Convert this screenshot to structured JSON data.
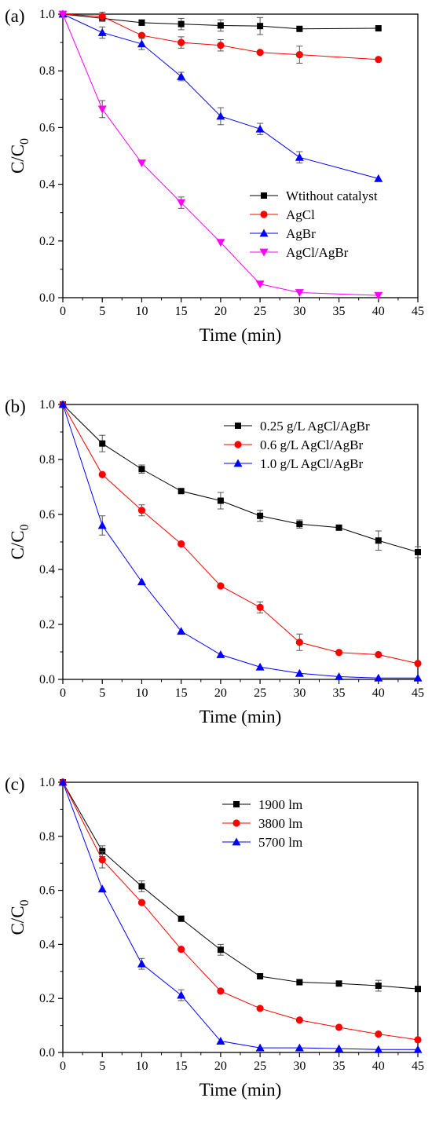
{
  "chart_data": [
    {
      "panel_label": "(a)",
      "type": "line",
      "xlabel": "Time (min)",
      "ylabel_main": "C/C",
      "ylabel_sub": "0",
      "xlim": [
        0,
        45
      ],
      "ylim": [
        0,
        1
      ],
      "xticks": [
        "0",
        "5",
        "10",
        "15",
        "20",
        "25",
        "30",
        "35",
        "40",
        "45"
      ],
      "yticks": [
        "0.0",
        "0.2",
        "0.4",
        "0.6",
        "0.8",
        "1.0"
      ],
      "legend_position": "lower-right",
      "series": [
        {
          "name": "Wtithout catalyst",
          "color": "#000000",
          "marker": "square",
          "x": [
            0,
            5,
            10,
            15,
            20,
            25,
            30,
            40
          ],
          "y": [
            1.0,
            0.985,
            0.97,
            0.965,
            0.96,
            0.958,
            0.948,
            0.95
          ],
          "err": [
            0,
            0.01,
            0.01,
            0.02,
            0.02,
            0.03,
            0,
            0
          ]
        },
        {
          "name": "AgCl",
          "color": "#ff0000",
          "marker": "circle",
          "x": [
            0,
            5,
            10,
            15,
            20,
            25,
            30,
            40
          ],
          "y": [
            1.0,
            0.992,
            0.925,
            0.9,
            0.89,
            0.865,
            0.857,
            0.84
          ],
          "err": [
            0,
            0.015,
            0,
            0.02,
            0.02,
            0,
            0.03,
            0
          ]
        },
        {
          "name": "AgBr",
          "color": "#0000ff",
          "marker": "triangle-up",
          "x": [
            0,
            5,
            10,
            15,
            20,
            25,
            30,
            40
          ],
          "y": [
            1.0,
            0.935,
            0.895,
            0.78,
            0.64,
            0.595,
            0.495,
            0.42
          ],
          "err": [
            0,
            0.02,
            0.02,
            0.015,
            0.03,
            0.02,
            0.02,
            0
          ]
        },
        {
          "name": "AgCl/AgBr",
          "color": "#ff00ff",
          "marker": "triangle-down",
          "x": [
            0,
            5,
            10,
            15,
            20,
            25,
            30,
            40
          ],
          "y": [
            1.0,
            0.665,
            0.475,
            0.335,
            0.195,
            0.048,
            0.018,
            0.008
          ],
          "err": [
            0,
            0.03,
            0,
            0.02,
            0,
            0,
            0,
            0
          ]
        }
      ]
    },
    {
      "panel_label": "(b)",
      "type": "line",
      "xlabel": "Time (min)",
      "ylabel_main": "C/C",
      "ylabel_sub": "0",
      "xlim": [
        0,
        45
      ],
      "ylim": [
        0,
        1
      ],
      "xticks": [
        "0",
        "5",
        "10",
        "15",
        "20",
        "25",
        "30",
        "35",
        "40",
        "45"
      ],
      "yticks": [
        "0.0",
        "0.2",
        "0.4",
        "0.6",
        "0.8",
        "1.0"
      ],
      "legend_position": "top-right",
      "series": [
        {
          "name": "0.25 g/L AgCl/AgBr",
          "color": "#000000",
          "marker": "square",
          "x": [
            0,
            5,
            10,
            15,
            20,
            25,
            30,
            35,
            40,
            45
          ],
          "y": [
            1.0,
            0.858,
            0.765,
            0.685,
            0.65,
            0.595,
            0.565,
            0.552,
            0.505,
            0.463
          ],
          "err": [
            0,
            0.03,
            0.015,
            0,
            0.03,
            0.02,
            0.015,
            0,
            0.035,
            0.02
          ]
        },
        {
          "name": "0.6 g/L AgCl/AgBr",
          "color": "#ff0000",
          "marker": "circle",
          "x": [
            0,
            5,
            10,
            15,
            20,
            25,
            30,
            35,
            40,
            45
          ],
          "y": [
            1.0,
            0.745,
            0.615,
            0.493,
            0.34,
            0.262,
            0.135,
            0.098,
            0.09,
            0.058
          ],
          "err": [
            0,
            0,
            0.02,
            0,
            0,
            0.02,
            0.03,
            0,
            0,
            0
          ]
        },
        {
          "name": "1.0 g/L AgCl/AgBr",
          "color": "#0000ff",
          "marker": "triangle-up",
          "x": [
            0,
            5,
            10,
            15,
            20,
            25,
            30,
            35,
            40,
            45
          ],
          "y": [
            1.0,
            0.56,
            0.355,
            0.175,
            0.09,
            0.045,
            0.022,
            0.01,
            0.005,
            0.005
          ],
          "err": [
            0,
            0.035,
            0,
            0,
            0,
            0,
            0,
            0,
            0,
            0
          ]
        }
      ]
    },
    {
      "panel_label": "(c)",
      "type": "line",
      "xlabel": "Time (min)",
      "ylabel_main": "C/C",
      "ylabel_sub": "0",
      "xlim": [
        0,
        45
      ],
      "ylim": [
        0,
        1
      ],
      "xticks": [
        "0",
        "5",
        "10",
        "15",
        "20",
        "25",
        "30",
        "35",
        "40",
        "45"
      ],
      "yticks": [
        "0.0",
        "0.2",
        "0.4",
        "0.6",
        "0.8",
        "1.0"
      ],
      "legend_position": "top-center",
      "series": [
        {
          "name": "1900 lm",
          "color": "#000000",
          "marker": "square",
          "x": [
            0,
            5,
            10,
            15,
            20,
            25,
            30,
            35,
            40,
            45
          ],
          "y": [
            1.0,
            0.745,
            0.615,
            0.495,
            0.38,
            0.282,
            0.26,
            0.255,
            0.247,
            0.235
          ],
          "err": [
            0,
            0.02,
            0.02,
            0,
            0.02,
            0,
            0,
            0,
            0.02,
            0
          ]
        },
        {
          "name": "3800 lm",
          "color": "#ff0000",
          "marker": "circle",
          "x": [
            0,
            5,
            10,
            15,
            20,
            25,
            30,
            35,
            40,
            45
          ],
          "y": [
            1.0,
            0.713,
            0.555,
            0.382,
            0.227,
            0.163,
            0.12,
            0.093,
            0.068,
            0.047
          ],
          "err": [
            0,
            0.03,
            0,
            0,
            0,
            0,
            0,
            0,
            0,
            0
          ]
        },
        {
          "name": "5700 lm",
          "color": "#0000ff",
          "marker": "triangle-up",
          "x": [
            0,
            5,
            10,
            15,
            20,
            25,
            30,
            35,
            40,
            45
          ],
          "y": [
            1.0,
            0.605,
            0.328,
            0.212,
            0.042,
            0.017,
            0.017,
            0.014,
            0.011,
            0.011
          ],
          "err": [
            0,
            0,
            0.02,
            0.02,
            0,
            0,
            0,
            0,
            0,
            0
          ]
        }
      ]
    }
  ]
}
